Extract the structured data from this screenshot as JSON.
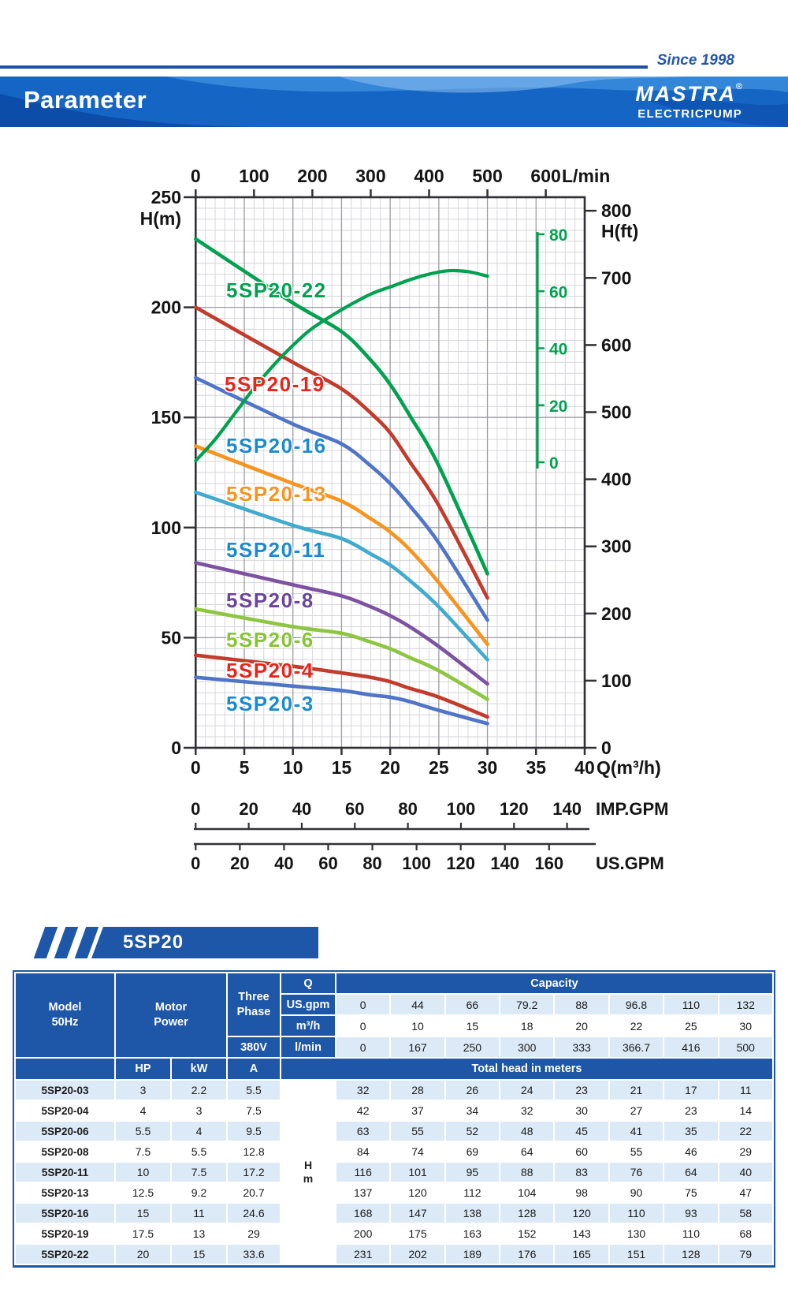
{
  "header": {
    "since": "Since 1998",
    "title": "Parameter",
    "brand": "MASTRA",
    "brand_reg": "®",
    "brand_sub": "ELECTRICPUMP"
  },
  "model_banner": "5SP20",
  "chart_data": {
    "type": "line",
    "title": "5SP20 submersible pump performance curves",
    "top_axis": {
      "label": "L/min",
      "ticks": [
        0,
        100,
        200,
        300,
        400,
        500,
        600
      ]
    },
    "bottom_axis": {
      "label": "Q(m³/h)",
      "ticks": [
        0,
        5,
        10,
        15,
        20,
        25,
        30,
        35,
        40
      ]
    },
    "imp_axis": {
      "label": "IMP.GPM",
      "ticks": [
        0,
        20,
        40,
        60,
        80,
        100,
        120,
        140
      ]
    },
    "us_axis": {
      "label": "US.GPM",
      "ticks": [
        0,
        20,
        40,
        60,
        80,
        100,
        120,
        140,
        160
      ]
    },
    "left_axis": {
      "label": "H(m)",
      "ticks": [
        250,
        200,
        150,
        100,
        50,
        0
      ],
      "range": [
        0,
        250
      ]
    },
    "right_axis": {
      "label": "H(ft)",
      "ticks": [
        800,
        700,
        600,
        500,
        400,
        300,
        200,
        100,
        0
      ]
    },
    "eff_axis": {
      "ticks": [
        80,
        60,
        40,
        20,
        0
      ]
    },
    "q": [
      0,
      10,
      15,
      18,
      20,
      22,
      25,
      30
    ],
    "series": [
      {
        "name": "5SP20-22",
        "color": "#00a14f",
        "label_color": "#00a14f",
        "heads": [
          231,
          202,
          189,
          176,
          165,
          151,
          128,
          79
        ]
      },
      {
        "name": "5SP20-19",
        "color": "#c23b2b",
        "label_color": "#e8251d",
        "heads": [
          200,
          175,
          163,
          152,
          143,
          130,
          110,
          68
        ]
      },
      {
        "name": "5SP20-16",
        "color": "#4f75c8",
        "label_color": "#1b8bd0",
        "heads": [
          168,
          147,
          138,
          128,
          120,
          110,
          93,
          58
        ]
      },
      {
        "name": "5SP20-13",
        "color": "#f7941d",
        "label_color": "#f7941d",
        "heads": [
          137,
          120,
          112,
          104,
          98,
          90,
          75,
          47
        ]
      },
      {
        "name": "5SP20-11",
        "color": "#3fabcf",
        "label_color": "#1b8bd0",
        "heads": [
          116,
          101,
          95,
          88,
          83,
          76,
          64,
          40
        ]
      },
      {
        "name": "5SP20-8",
        "color": "#7c52a1",
        "label_color": "#6d449c",
        "heads": [
          84,
          74,
          69,
          64,
          60,
          55,
          46,
          29
        ]
      },
      {
        "name": "5SP20-6",
        "color": "#8dc63f",
        "label_color": "#86c531",
        "heads": [
          63,
          55,
          52,
          48,
          45,
          41,
          35,
          22
        ]
      },
      {
        "name": "5SP20-4",
        "color": "#c23b2b",
        "label_color": "#e8251d",
        "heads": [
          42,
          37,
          34,
          32,
          30,
          27,
          23,
          14
        ]
      },
      {
        "name": "5SP20-3",
        "color": "#4f75c8",
        "label_color": "#1b8bd0",
        "heads": [
          32,
          28,
          26,
          24,
          23,
          21,
          17,
          11
        ]
      }
    ],
    "efficiency": {
      "color": "#00a14f",
      "points": [
        [
          0,
          0.5
        ],
        [
          2,
          8
        ],
        [
          4,
          17
        ],
        [
          6,
          26
        ],
        [
          8,
          34
        ],
        [
          10,
          41
        ],
        [
          12,
          47
        ],
        [
          15,
          53.5
        ],
        [
          18,
          59
        ],
        [
          20,
          61.5
        ],
        [
          22,
          64
        ],
        [
          24,
          66
        ],
        [
          26,
          67.2
        ],
        [
          28,
          66.9
        ],
        [
          30,
          65.3
        ]
      ]
    }
  },
  "table": {
    "model_header": [
      "Model",
      "50Hz"
    ],
    "motor_header": [
      "Motor",
      "Power"
    ],
    "phase_header": [
      "Three",
      "Phase"
    ],
    "voltage": "380V",
    "q_label": "Q",
    "capacity_label": "Capacity",
    "unit_rows": [
      {
        "unit": "US.gpm",
        "values": [
          "0",
          "44",
          "66",
          "79.2",
          "88",
          "96.8",
          "110",
          "132"
        ]
      },
      {
        "unit": "m³/h",
        "values": [
          "0",
          "10",
          "15",
          "18",
          "20",
          "22",
          "25",
          "30"
        ]
      },
      {
        "unit": "l/min",
        "values": [
          "0",
          "167",
          "250",
          "300",
          "333",
          "366.7",
          "416",
          "500"
        ]
      }
    ],
    "sub_headers": [
      "HP",
      "kW",
      "A"
    ],
    "total_head_label": "Total head in meters",
    "hm_cell": [
      "H",
      "m"
    ],
    "rows": [
      {
        "model": "5SP20-03",
        "hp": "3",
        "kw": "2.2",
        "a": "5.5",
        "heads": [
          "32",
          "28",
          "26",
          "24",
          "23",
          "21",
          "17",
          "11"
        ]
      },
      {
        "model": "5SP20-04",
        "hp": "4",
        "kw": "3",
        "a": "7.5",
        "heads": [
          "42",
          "37",
          "34",
          "32",
          "30",
          "27",
          "23",
          "14"
        ]
      },
      {
        "model": "5SP20-06",
        "hp": "5.5",
        "kw": "4",
        "a": "9.5",
        "heads": [
          "63",
          "55",
          "52",
          "48",
          "45",
          "41",
          "35",
          "22"
        ]
      },
      {
        "model": "5SP20-08",
        "hp": "7.5",
        "kw": "5.5",
        "a": "12.8",
        "heads": [
          "84",
          "74",
          "69",
          "64",
          "60",
          "55",
          "46",
          "29"
        ]
      },
      {
        "model": "5SP20-11",
        "hp": "10",
        "kw": "7.5",
        "a": "17.2",
        "heads": [
          "116",
          "101",
          "95",
          "88",
          "83",
          "76",
          "64",
          "40"
        ]
      },
      {
        "model": "5SP20-13",
        "hp": "12.5",
        "kw": "9.2",
        "a": "20.7",
        "heads": [
          "137",
          "120",
          "112",
          "104",
          "98",
          "90",
          "75",
          "47"
        ]
      },
      {
        "model": "5SP20-16",
        "hp": "15",
        "kw": "11",
        "a": "24.6",
        "heads": [
          "168",
          "147",
          "138",
          "128",
          "120",
          "110",
          "93",
          "58"
        ]
      },
      {
        "model": "5SP20-19",
        "hp": "17.5",
        "kw": "13",
        "a": "29",
        "heads": [
          "200",
          "175",
          "163",
          "152",
          "143",
          "130",
          "110",
          "68"
        ]
      },
      {
        "model": "5SP20-22",
        "hp": "20",
        "kw": "15",
        "a": "33.6",
        "heads": [
          "231",
          "202",
          "189",
          "176",
          "165",
          "151",
          "128",
          "79"
        ]
      }
    ]
  }
}
